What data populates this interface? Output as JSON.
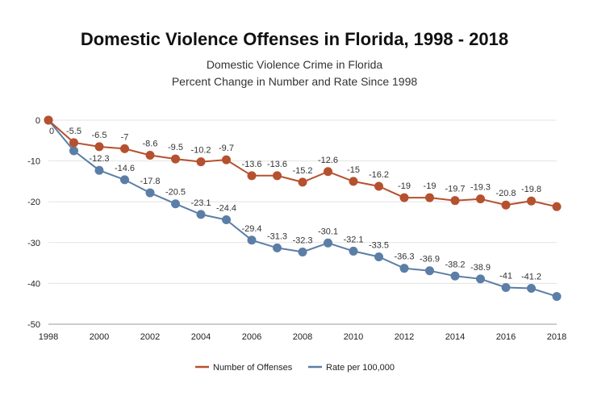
{
  "chart_data": {
    "type": "line",
    "title": "Domestic Violence Offenses in Florida, 1998 - 2018",
    "subtitle_lines": [
      "Domestic Violence Crime in Florida",
      "Percent Change in Number and Rate Since 1998"
    ],
    "xlabel": "",
    "ylabel": "",
    "x": [
      1998,
      1999,
      2000,
      2001,
      2002,
      2003,
      2004,
      2005,
      2006,
      2007,
      2008,
      2009,
      2010,
      2011,
      2012,
      2013,
      2014,
      2015,
      2016,
      2017,
      2018
    ],
    "x_tick_labels": [
      "1998",
      "2000",
      "2002",
      "2004",
      "2006",
      "2008",
      "2010",
      "2012",
      "2014",
      "2016",
      "2018"
    ],
    "y_tick_labels": [
      "0",
      "-10",
      "-20",
      "-30",
      "-40",
      "-50"
    ],
    "xlim": [
      1998,
      2018
    ],
    "ylim": [
      -50,
      0
    ],
    "grid": true,
    "legend_position": "bottom-center",
    "series": [
      {
        "name": "Number of Offenses",
        "color": "#b5512e",
        "values": [
          0,
          -5.5,
          -6.5,
          -7,
          -8.6,
          -9.5,
          -10.2,
          -9.7,
          -13.6,
          -13.6,
          -15.2,
          -12.6,
          -15,
          -16.2,
          -19,
          -19,
          -19.7,
          -19.3,
          -20.8,
          -19.8,
          -21.2
        ],
        "labels": [
          "0",
          "-5.5",
          "-6.5",
          "-7",
          "-8.6",
          "-9.5",
          "-10.2",
          "-9.7",
          "-13.6",
          "-13.6",
          "-15.2",
          "-12.6",
          "-15",
          "-16.2",
          "-19",
          "-19",
          "-19.7",
          "-19.3",
          "-20.8",
          "-19.8",
          ""
        ]
      },
      {
        "name": "Rate per 100,000",
        "color": "#5b7ea6",
        "values": [
          0,
          -7.5,
          -12.3,
          -14.6,
          -17.8,
          -20.5,
          -23.1,
          -24.4,
          -29.4,
          -31.3,
          -32.3,
          -30.1,
          -32.1,
          -33.5,
          -36.3,
          -36.9,
          -38.2,
          -38.9,
          -41,
          -41.2,
          -43.2
        ],
        "labels": [
          "",
          "",
          "-12.3",
          "-14.6",
          "-17.8",
          "-20.5",
          "-23.1",
          "-24.4",
          "-29.4",
          "-31.3",
          "-32.3",
          "-30.1",
          "-32.1",
          "-33.5",
          "-36.3",
          "-36.9",
          "-38.2",
          "-38.9",
          "-41",
          "-41.2",
          ""
        ]
      }
    ]
  }
}
